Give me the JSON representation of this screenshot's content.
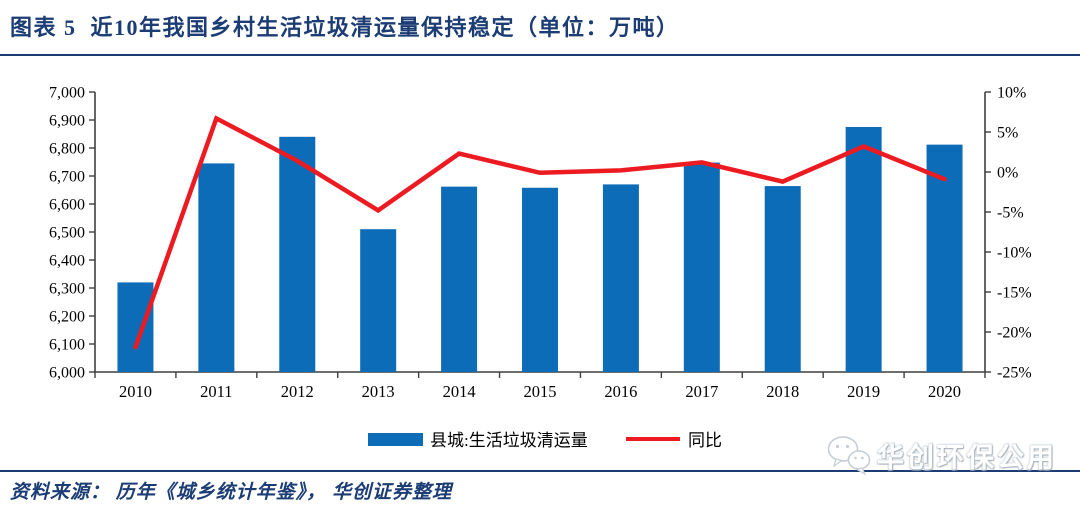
{
  "header": {
    "title": "图表 5  近10年我国乡村生活垃圾清运量保持稳定（单位：万吨）"
  },
  "footer": {
    "source": "资料来源： 历年《城乡统计年鉴》， 华创证券整理"
  },
  "watermark": {
    "icon": "wechat-icon",
    "label": "华创环保公用"
  },
  "colors": {
    "bar": "#0D6CB8",
    "line": "#EC1A21",
    "title": "#1B3C74",
    "rule": "#1B3C74",
    "axis": "#3F3F3F",
    "tick_text": "#000000"
  },
  "chart_data": {
    "type": "bar+line combo",
    "title": "近10年我国乡村生活垃圾清运量保持稳定",
    "unit": "万吨",
    "categories": [
      "2010",
      "2011",
      "2012",
      "2013",
      "2014",
      "2015",
      "2016",
      "2017",
      "2018",
      "2019",
      "2020"
    ],
    "series": [
      {
        "name": "县城:生活垃圾清运量",
        "type": "bar",
        "axis": "left",
        "color": "#0D6CB8",
        "values": [
          6320,
          6745,
          6840,
          6510,
          6662,
          6658,
          6670,
          6748,
          6664,
          6875,
          6812
        ]
      },
      {
        "name": "同比",
        "type": "line",
        "axis": "right",
        "color": "#EC1A21",
        "values_percent": [
          -21.9,
          6.7,
          1.4,
          -4.8,
          2.3,
          -0.1,
          0.2,
          1.2,
          -1.2,
          3.2,
          -0.9
        ]
      }
    ],
    "left_axis": {
      "min": 6000,
      "max": 7000,
      "step": 100,
      "tick_labels": [
        "7,000",
        "6,900",
        "6,800",
        "6,700",
        "6,600",
        "6,500",
        "6,400",
        "6,300",
        "6,200",
        "6,100",
        "6,000"
      ]
    },
    "right_axis": {
      "min": -25,
      "max": 10,
      "step": 5,
      "tick_labels": [
        "10%",
        "5%",
        "0%",
        "-5%",
        "-10%",
        "-15%",
        "-20%",
        "-25%"
      ]
    },
    "grid": false,
    "legend_position": "bottom"
  }
}
